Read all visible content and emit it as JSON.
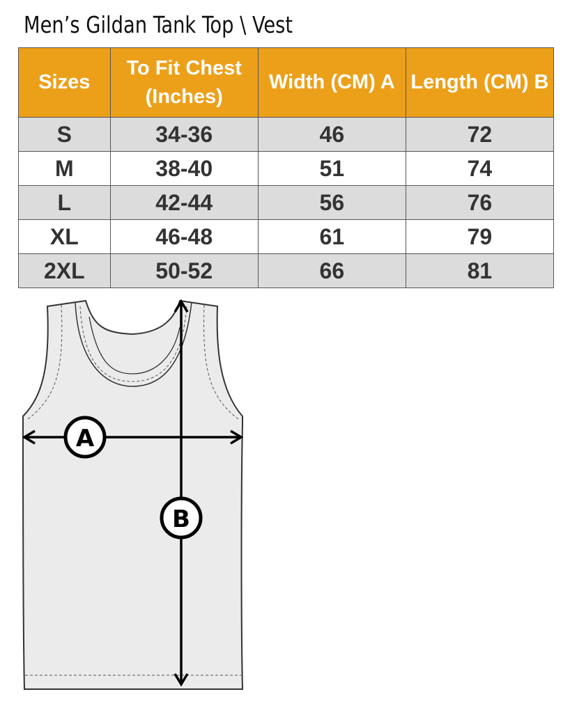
{
  "title": "Men’s Gildan Tank Top \\ Vest",
  "table": {
    "headers": [
      "Sizes",
      "To Fit Chest (Inches)",
      "Width (CM) A",
      "Length  (CM) B"
    ],
    "rows": [
      [
        "S",
        "34-36",
        "46",
        "72"
      ],
      [
        "M",
        "38-40",
        "51",
        "74"
      ],
      [
        "L",
        "42-44",
        "56",
        "76"
      ],
      [
        "XL",
        "46-48",
        "61",
        "79"
      ],
      [
        "2XL",
        "50-52",
        "66",
        "81"
      ]
    ]
  },
  "diagram": {
    "label_a": "A",
    "label_b": "B"
  },
  "colors": {
    "header": "#eca01a",
    "stripe": "#dcdcdc"
  }
}
